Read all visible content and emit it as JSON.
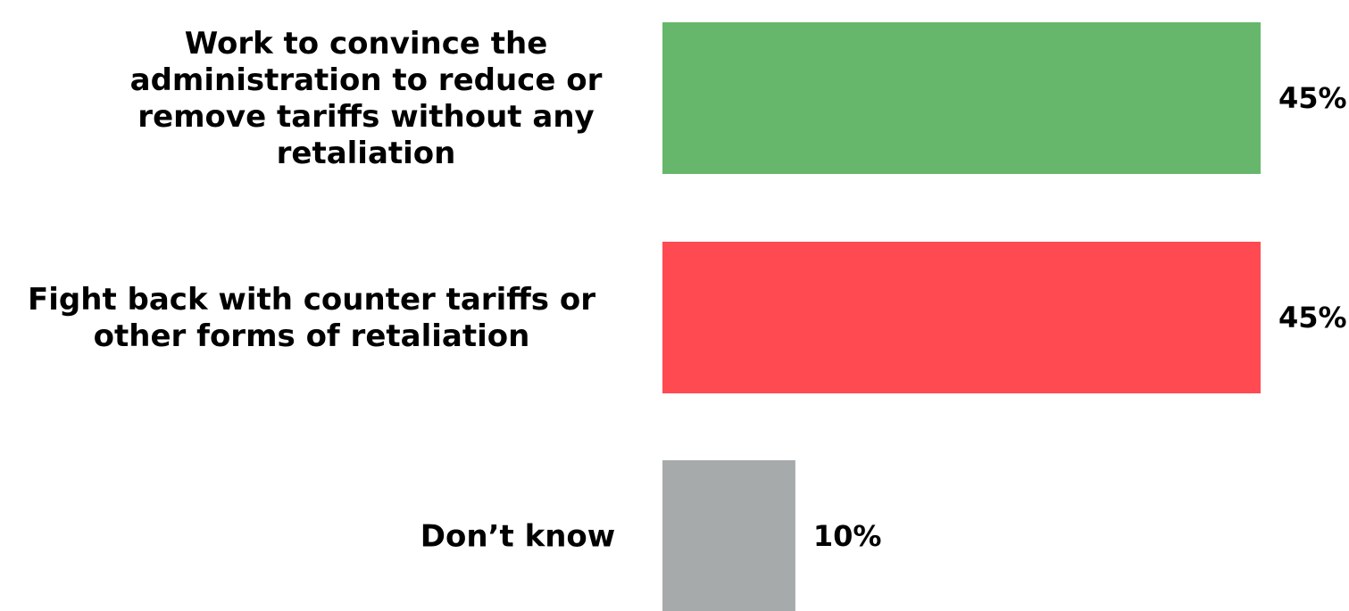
{
  "chart_data": {
    "type": "bar",
    "orientation": "horizontal",
    "categories": [
      "Work to convince the administration to reduce or remove tariffs without any retaliation",
      "Fight back with counter tariffs or other forms of retaliation",
      "Don’t know"
    ],
    "category_lines": [
      [
        "Work to convince the",
        "administration to reduce or",
        "remove tariffs without any",
        "retaliation"
      ],
      [
        "Fight back with counter tariffs or",
        "other forms of retaliation"
      ],
      [
        "Don’t know"
      ]
    ],
    "values": [
      45,
      45,
      10
    ],
    "value_labels": [
      "45%",
      "45%",
      "10%"
    ],
    "colors": [
      "#66b76b",
      "#ff4a51",
      "#a7aaab"
    ],
    "xlim": [
      0,
      45
    ],
    "grid": false,
    "legend": "none",
    "title": "",
    "xlabel": "",
    "ylabel": ""
  }
}
